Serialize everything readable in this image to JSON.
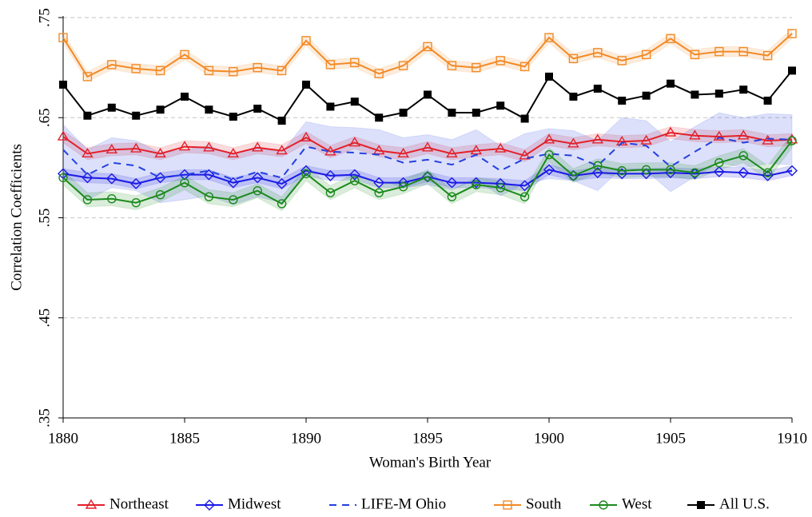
{
  "chart_data": {
    "type": "line",
    "x_label": "Woman's Birth Year",
    "y_label": "Correlation Coefficients",
    "x": [
      1880,
      1881,
      1882,
      1883,
      1884,
      1885,
      1886,
      1887,
      1888,
      1889,
      1890,
      1891,
      1892,
      1893,
      1894,
      1895,
      1896,
      1897,
      1898,
      1899,
      1900,
      1901,
      1902,
      1903,
      1904,
      1905,
      1906,
      1907,
      1908,
      1909,
      1910
    ],
    "xlim": [
      1880,
      1910
    ],
    "xticks": [
      1880,
      1885,
      1890,
      1895,
      1900,
      1905,
      1910
    ],
    "ylim": [
      0.35,
      0.75
    ],
    "yticks": [
      {
        "value": 0.35,
        "label": ".35"
      },
      {
        "value": 0.45,
        "label": ".45"
      },
      {
        "value": 0.55,
        "label": ".55"
      },
      {
        "value": 0.65,
        "label": ".65"
      },
      {
        "value": 0.75,
        "label": ".75"
      }
    ],
    "grid": true,
    "legend": "bottom",
    "series": [
      {
        "name": "Northeast",
        "color": "#e3202a",
        "marker": "triangle",
        "ci": 0.006,
        "values": [
          0.631,
          0.614,
          0.618,
          0.619,
          0.614,
          0.621,
          0.62,
          0.614,
          0.62,
          0.617,
          0.63,
          0.616,
          0.625,
          0.617,
          0.614,
          0.62,
          0.614,
          0.617,
          0.619,
          0.612,
          0.628,
          0.624,
          0.628,
          0.626,
          0.627,
          0.635,
          0.632,
          0.631,
          0.632,
          0.627,
          0.628
        ]
      },
      {
        "name": "Midwest",
        "color": "#1a1ae6",
        "marker": "diamond",
        "ci": 0.005,
        "values": [
          0.594,
          0.59,
          0.589,
          0.584,
          0.59,
          0.593,
          0.593,
          0.585,
          0.59,
          0.584,
          0.597,
          0.592,
          0.593,
          0.585,
          0.585,
          0.591,
          0.585,
          0.585,
          0.584,
          0.582,
          0.598,
          0.592,
          0.595,
          0.594,
          0.594,
          0.595,
          0.594,
          0.596,
          0.595,
          0.592,
          0.597
        ]
      },
      {
        "name": "LIFE-M Ohio",
        "color": "#2440e0",
        "marker": "none",
        "dashed": true,
        "ci": 0.025,
        "values": [
          0.618,
          0.593,
          0.605,
          0.602,
          0.59,
          0.593,
          0.597,
          0.588,
          0.596,
          0.59,
          0.621,
          0.616,
          0.615,
          0.613,
          0.605,
          0.608,
          0.603,
          0.613,
          0.597,
          0.609,
          0.614,
          0.612,
          0.602,
          0.625,
          0.622,
          0.601,
          0.616,
          0.63,
          0.625,
          0.629,
          0.628
        ]
      },
      {
        "name": "South",
        "color": "#f28a26",
        "marker": "square",
        "ci": 0.005,
        "values": [
          0.73,
          0.691,
          0.703,
          0.699,
          0.697,
          0.713,
          0.697,
          0.696,
          0.7,
          0.697,
          0.727,
          0.703,
          0.705,
          0.694,
          0.702,
          0.721,
          0.702,
          0.7,
          0.707,
          0.701,
          0.73,
          0.709,
          0.715,
          0.707,
          0.713,
          0.729,
          0.713,
          0.716,
          0.716,
          0.712,
          0.734
        ]
      },
      {
        "name": "West",
        "color": "#1b8a1b",
        "marker": "circle",
        "ci": 0.007,
        "values": [
          0.59,
          0.568,
          0.569,
          0.565,
          0.573,
          0.585,
          0.571,
          0.568,
          0.577,
          0.564,
          0.594,
          0.575,
          0.587,
          0.575,
          0.581,
          0.591,
          0.571,
          0.583,
          0.58,
          0.571,
          0.613,
          0.592,
          0.602,
          0.597,
          0.598,
          0.598,
          0.595,
          0.605,
          0.612,
          0.595,
          0.627
        ]
      },
      {
        "name": "All U.S.",
        "color": "#000000",
        "marker": "filled-square",
        "values": [
          0.683,
          0.652,
          0.66,
          0.652,
          0.658,
          0.671,
          0.658,
          0.651,
          0.659,
          0.647,
          0.683,
          0.661,
          0.666,
          0.65,
          0.655,
          0.673,
          0.655,
          0.655,
          0.662,
          0.649,
          0.691,
          0.671,
          0.679,
          0.667,
          0.672,
          0.684,
          0.673,
          0.674,
          0.678,
          0.667,
          0.697
        ]
      }
    ]
  }
}
